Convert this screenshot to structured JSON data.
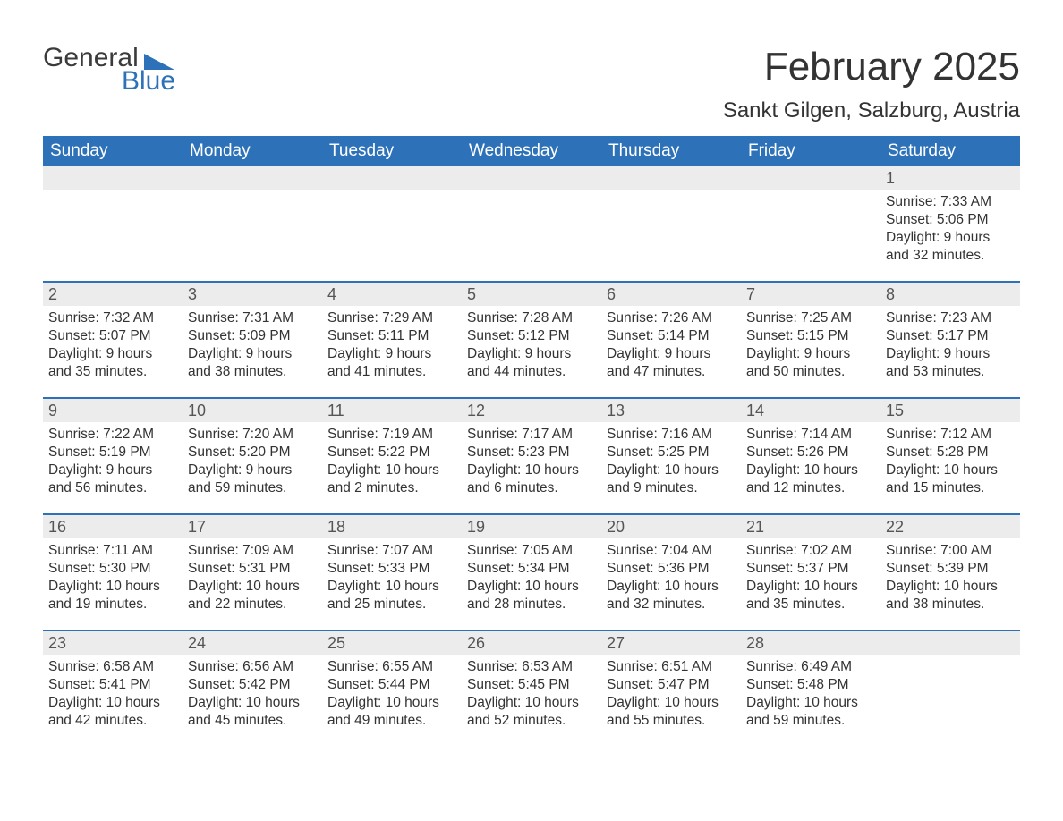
{
  "logo": {
    "word1": "General",
    "word2": "Blue"
  },
  "title": {
    "month_year": "February 2025",
    "location": "Sankt Gilgen, Salzburg, Austria"
  },
  "colors": {
    "header_bg": "#2d72b8",
    "header_text": "#ffffff",
    "daybar_bg": "#ececec",
    "text": "#333333",
    "logo_blue": "#2d72b8",
    "logo_dark": "#3b3b3b"
  },
  "weekday_labels": [
    "Sunday",
    "Monday",
    "Tuesday",
    "Wednesday",
    "Thursday",
    "Friday",
    "Saturday"
  ],
  "calendar": {
    "first_weekday_index": 6,
    "days": [
      {
        "n": 1,
        "sunrise": "7:33 AM",
        "sunset": "5:06 PM",
        "daylight": "9 hours and 32 minutes."
      },
      {
        "n": 2,
        "sunrise": "7:32 AM",
        "sunset": "5:07 PM",
        "daylight": "9 hours and 35 minutes."
      },
      {
        "n": 3,
        "sunrise": "7:31 AM",
        "sunset": "5:09 PM",
        "daylight": "9 hours and 38 minutes."
      },
      {
        "n": 4,
        "sunrise": "7:29 AM",
        "sunset": "5:11 PM",
        "daylight": "9 hours and 41 minutes."
      },
      {
        "n": 5,
        "sunrise": "7:28 AM",
        "sunset": "5:12 PM",
        "daylight": "9 hours and 44 minutes."
      },
      {
        "n": 6,
        "sunrise": "7:26 AM",
        "sunset": "5:14 PM",
        "daylight": "9 hours and 47 minutes."
      },
      {
        "n": 7,
        "sunrise": "7:25 AM",
        "sunset": "5:15 PM",
        "daylight": "9 hours and 50 minutes."
      },
      {
        "n": 8,
        "sunrise": "7:23 AM",
        "sunset": "5:17 PM",
        "daylight": "9 hours and 53 minutes."
      },
      {
        "n": 9,
        "sunrise": "7:22 AM",
        "sunset": "5:19 PM",
        "daylight": "9 hours and 56 minutes."
      },
      {
        "n": 10,
        "sunrise": "7:20 AM",
        "sunset": "5:20 PM",
        "daylight": "9 hours and 59 minutes."
      },
      {
        "n": 11,
        "sunrise": "7:19 AM",
        "sunset": "5:22 PM",
        "daylight": "10 hours and 2 minutes."
      },
      {
        "n": 12,
        "sunrise": "7:17 AM",
        "sunset": "5:23 PM",
        "daylight": "10 hours and 6 minutes."
      },
      {
        "n": 13,
        "sunrise": "7:16 AM",
        "sunset": "5:25 PM",
        "daylight": "10 hours and 9 minutes."
      },
      {
        "n": 14,
        "sunrise": "7:14 AM",
        "sunset": "5:26 PM",
        "daylight": "10 hours and 12 minutes."
      },
      {
        "n": 15,
        "sunrise": "7:12 AM",
        "sunset": "5:28 PM",
        "daylight": "10 hours and 15 minutes."
      },
      {
        "n": 16,
        "sunrise": "7:11 AM",
        "sunset": "5:30 PM",
        "daylight": "10 hours and 19 minutes."
      },
      {
        "n": 17,
        "sunrise": "7:09 AM",
        "sunset": "5:31 PM",
        "daylight": "10 hours and 22 minutes."
      },
      {
        "n": 18,
        "sunrise": "7:07 AM",
        "sunset": "5:33 PM",
        "daylight": "10 hours and 25 minutes."
      },
      {
        "n": 19,
        "sunrise": "7:05 AM",
        "sunset": "5:34 PM",
        "daylight": "10 hours and 28 minutes."
      },
      {
        "n": 20,
        "sunrise": "7:04 AM",
        "sunset": "5:36 PM",
        "daylight": "10 hours and 32 minutes."
      },
      {
        "n": 21,
        "sunrise": "7:02 AM",
        "sunset": "5:37 PM",
        "daylight": "10 hours and 35 minutes."
      },
      {
        "n": 22,
        "sunrise": "7:00 AM",
        "sunset": "5:39 PM",
        "daylight": "10 hours and 38 minutes."
      },
      {
        "n": 23,
        "sunrise": "6:58 AM",
        "sunset": "5:41 PM",
        "daylight": "10 hours and 42 minutes."
      },
      {
        "n": 24,
        "sunrise": "6:56 AM",
        "sunset": "5:42 PM",
        "daylight": "10 hours and 45 minutes."
      },
      {
        "n": 25,
        "sunrise": "6:55 AM",
        "sunset": "5:44 PM",
        "daylight": "10 hours and 49 minutes."
      },
      {
        "n": 26,
        "sunrise": "6:53 AM",
        "sunset": "5:45 PM",
        "daylight": "10 hours and 52 minutes."
      },
      {
        "n": 27,
        "sunrise": "6:51 AM",
        "sunset": "5:47 PM",
        "daylight": "10 hours and 55 minutes."
      },
      {
        "n": 28,
        "sunrise": "6:49 AM",
        "sunset": "5:48 PM",
        "daylight": "10 hours and 59 minutes."
      }
    ]
  },
  "labels": {
    "sunrise_prefix": "Sunrise: ",
    "sunset_prefix": "Sunset: ",
    "daylight_prefix": "Daylight: "
  }
}
